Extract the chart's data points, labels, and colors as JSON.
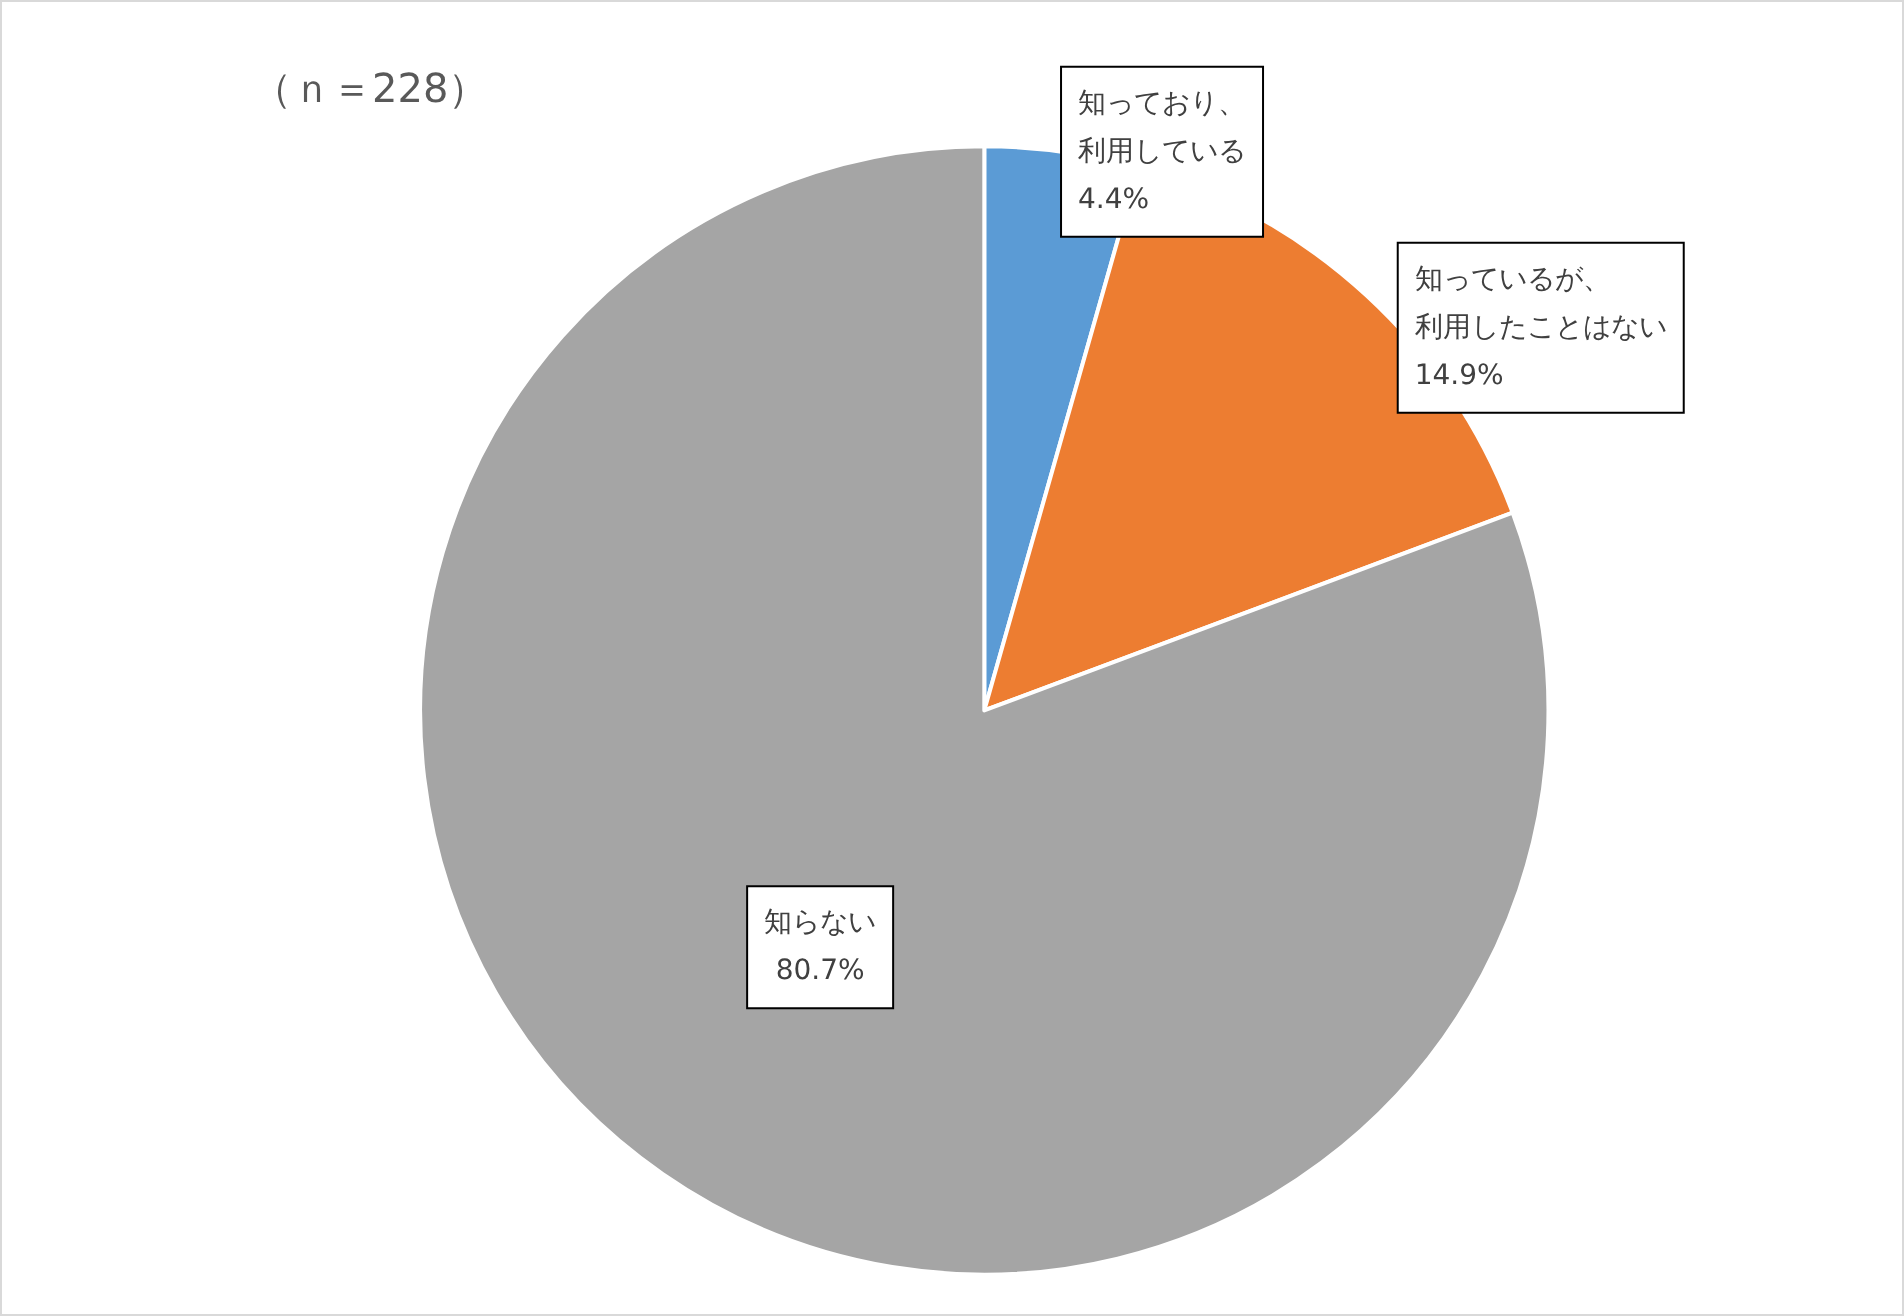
{
  "chart_data": {
    "type": "pie",
    "title": "（ｎ＝228）",
    "categories": [
      "知っており、利用している",
      "知っているが、利用したことはない",
      "知らない"
    ],
    "values": [
      4.4,
      14.9,
      80.7
    ],
    "value_labels": [
      "4.4%",
      "14.9%",
      "80.7%"
    ],
    "colors": [
      "#5b9bd5",
      "#ed7d31",
      "#a5a5a5"
    ],
    "legend": false
  }
}
